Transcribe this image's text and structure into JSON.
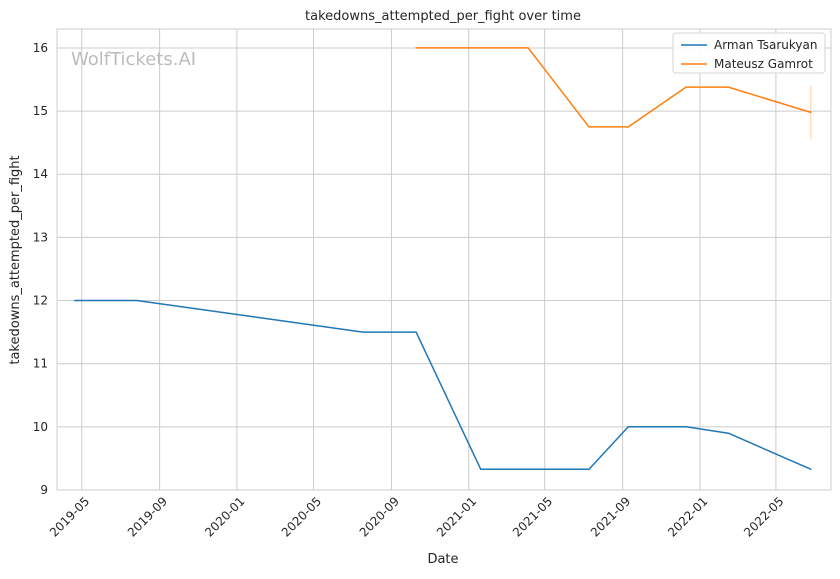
{
  "chart_data": {
    "type": "line",
    "title": "takedowns_attempted_per_fight over time",
    "xlabel": "Date",
    "ylabel": "takedowns_attempted_per_fight",
    "watermark": "WolfTickets.AI",
    "x_ticks": [
      "2019-05",
      "2019-09",
      "2020-01",
      "2020-05",
      "2020-09",
      "2021-01",
      "2021-05",
      "2021-09",
      "2022-01",
      "2022-05"
    ],
    "y_ticks": [
      "9",
      "10",
      "11",
      "12",
      "13",
      "14",
      "15",
      "16"
    ],
    "xlim": [
      "2019-03-23",
      "2022-07-27"
    ],
    "ylim": [
      9,
      16.3
    ],
    "grid": true,
    "legend_position": "top-right",
    "series": [
      {
        "name": "Arman Tsarukyan",
        "color": "#1f77b4",
        "points": [
          {
            "x": "2019-04-20",
            "y": 12.0
          },
          {
            "x": "2019-07-27",
            "y": 12.0
          },
          {
            "x": "2020-07-18",
            "y": 11.5
          },
          {
            "x": "2020-10-10",
            "y": 11.5
          },
          {
            "x": "2021-01-20",
            "y": 9.33
          },
          {
            "x": "2021-07-10",
            "y": 9.33
          },
          {
            "x": "2021-09-10",
            "y": 10.0
          },
          {
            "x": "2021-12-10",
            "y": 10.0
          },
          {
            "x": "2022-02-15",
            "y": 9.9
          },
          {
            "x": "2022-06-25",
            "y": 9.33
          }
        ]
      },
      {
        "name": "Mateusz Gamrot",
        "color": "#ff7f0e",
        "points": [
          {
            "x": "2020-10-10",
            "y": 16.0
          },
          {
            "x": "2021-04-05",
            "y": 16.0
          },
          {
            "x": "2021-07-10",
            "y": 14.75
          },
          {
            "x": "2021-09-10",
            "y": 14.75
          },
          {
            "x": "2021-12-10",
            "y": 15.38
          },
          {
            "x": "2022-02-15",
            "y": 15.38
          },
          {
            "x": "2022-06-25",
            "y": 14.98
          }
        ],
        "error_band": {
          "x": "2022-06-25",
          "low": 14.55,
          "high": 15.4
        }
      }
    ]
  }
}
